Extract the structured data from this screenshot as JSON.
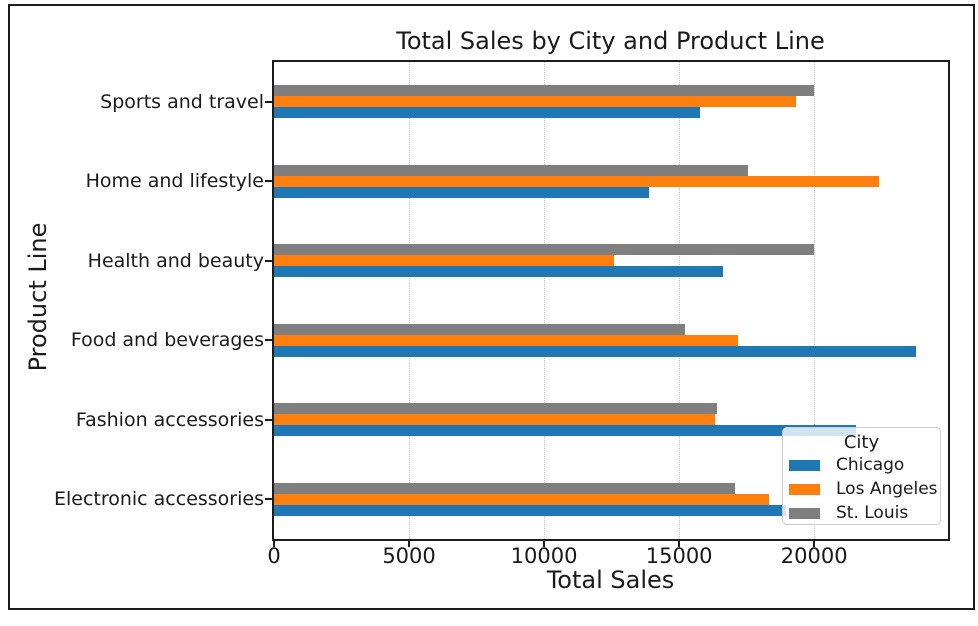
{
  "page": {
    "background": "#ffffff",
    "frame_border_color": "#1c1c1c"
  },
  "chart_data": {
    "type": "bar",
    "orientation": "horizontal",
    "title": "Total Sales by City and Product Line",
    "xlabel": "Total Sales",
    "ylabel": "Product Line",
    "xlim": [
      0,
      24954
    ],
    "xticks": [
      0,
      5000,
      10000,
      15000,
      20000
    ],
    "xtick_labels": [
      "0",
      "5000",
      "10000",
      "15000",
      "20000"
    ],
    "grid": {
      "axis": "x",
      "style": "dotted",
      "color": "#c8c8c8"
    },
    "categories": [
      "Sports and travel",
      "Home and lifestyle",
      "Health and beauty",
      "Food and beverages",
      "Fashion accessories",
      "Electronic accessories"
    ],
    "series": [
      {
        "name": "Chicago",
        "color": "#1f77b4",
        "values": [
          15761,
          13895,
          16615,
          23766,
          21560,
          18968
        ]
      },
      {
        "name": "Los Angeles",
        "color": "#ff7f0e",
        "values": [
          19327,
          22417,
          12597,
          17163,
          16333,
          18317
        ]
      },
      {
        "name": "St. Louis",
        "color": "#7f7f7f",
        "values": [
          19988,
          17549,
          19980,
          15214,
          16413,
          17051
        ]
      }
    ],
    "legend": {
      "title": "City",
      "position": "lower right",
      "background": "rgba(255,255,255,0.8)",
      "border_color": "#cccccc"
    }
  }
}
